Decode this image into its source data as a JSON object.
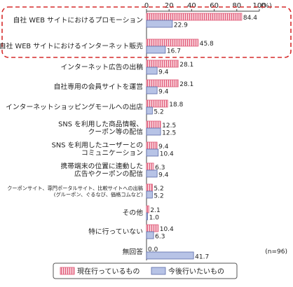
{
  "chart_data": {
    "type": "bar",
    "orientation": "horizontal",
    "axis_unit": "(%)",
    "xlim": [
      0,
      100
    ],
    "xticks": [
      "0",
      "20",
      "40",
      "60",
      "80",
      "100"
    ],
    "categories": [
      [
        "自社 WEB サイトにおけるプロモーション"
      ],
      [
        "自社 WEB サイトにおけるインターネット販売"
      ],
      [
        "インターネット広告の出稿"
      ],
      [
        "自社専用の会員サイトを運営"
      ],
      [
        "インターネットショッピングモールへの出店"
      ],
      [
        "SNS を利用した商品情報、",
        "クーポン等の配信"
      ],
      [
        "SNS を利用したユーザーとの",
        "コミュニケーション"
      ],
      [
        "携帯端末の位置に連動した",
        "広告やクーポンの配信"
      ],
      [
        "クーポンサイト、専門ポータルサイト、比較サイトへの出稿",
        "(グルーポン、ぐるなび、価格コムなど)"
      ],
      [
        "その他"
      ],
      [
        "特に行っていない"
      ],
      [
        "無回答"
      ]
    ],
    "series": [
      {
        "name": "現在行っているもの",
        "values": [
          84.4,
          45.8,
          28.1,
          28.1,
          18.8,
          12.5,
          9.4,
          6.3,
          5.2,
          2.1,
          10.4,
          0.0
        ],
        "labels": [
          "84.4",
          "45.8",
          "28.1",
          "28.1",
          "18.8",
          "12.5",
          "9.4",
          "6.3",
          "5.2",
          "2.1",
          "10.4",
          "0.0"
        ],
        "fill": "#f7c9d3",
        "stripe": "#e05a78"
      },
      {
        "name": "今後行いたいもの",
        "values": [
          22.9,
          16.7,
          9.4,
          9.4,
          5.2,
          12.5,
          10.4,
          9.4,
          5.2,
          1.0,
          6.3,
          41.7
        ],
        "labels": [
          "22.9",
          "16.7",
          "9.4",
          "9.4",
          "5.2",
          "12.5",
          "10.4",
          "9.4",
          "5.2",
          "1.0",
          "6.3",
          "41.7"
        ],
        "fill": "#b7c3e6",
        "stroke": "#5a6aa8"
      }
    ],
    "annotation": "(n=96)",
    "highlight_color": "#d62b2b",
    "highlight_rows": [
      0,
      1
    ]
  }
}
